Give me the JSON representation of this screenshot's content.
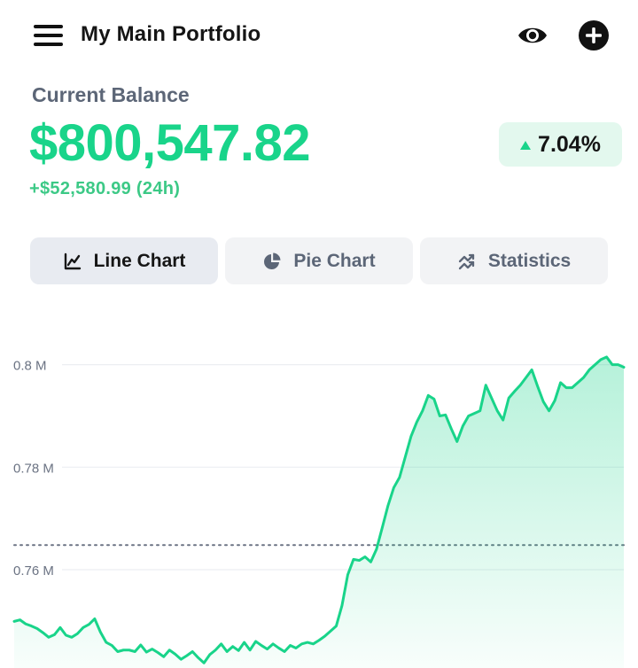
{
  "header": {
    "title": "My Main Portfolio",
    "menu_icon": "hamburger-menu-icon",
    "visibility_icon": "eye-icon",
    "add_icon": "plus-circle-icon"
  },
  "balance": {
    "label": "Current Balance",
    "value": "$800,547.82",
    "change_24h": "+$52,580.99 (24h)",
    "percent_change": "7.04%",
    "trend_icon": "triangle-up-icon"
  },
  "tabs": [
    {
      "label": "Line Chart",
      "icon": "line-chart-icon",
      "active": true
    },
    {
      "label": "Pie Chart",
      "icon": "pie-chart-icon",
      "active": false
    },
    {
      "label": "Statistics",
      "icon": "trending-icon",
      "active": false
    }
  ],
  "colors": {
    "accent": "#19d48a",
    "text_muted": "#5c6677",
    "badge_bg": "#e3f8ee",
    "tab_bg": "#f2f3f5",
    "tab_active_bg": "#e8ebf1"
  },
  "chart_data": {
    "type": "area",
    "y_ticks": [
      "0.8 M",
      "0.78 M",
      "0.76 M"
    ],
    "y_tick_values": [
      0.8,
      0.78,
      0.76
    ],
    "ylim": [
      0.7408,
      0.8072
    ],
    "reference_line": 0.7648,
    "grid": true,
    "series": [
      {
        "values": [
          0.7499,
          0.7502,
          0.7494,
          0.749,
          0.7485,
          0.7477,
          0.7468,
          0.7473,
          0.7487,
          0.7472,
          0.7468,
          0.7475,
          0.7487,
          0.7493,
          0.7504,
          0.7478,
          0.7458,
          0.7452,
          0.744,
          0.7443,
          0.7443,
          0.744,
          0.7453,
          0.7439,
          0.7445,
          0.7438,
          0.743,
          0.7443,
          0.7435,
          0.7425,
          0.7432,
          0.744,
          0.7428,
          0.7418,
          0.7434,
          0.7443,
          0.7455,
          0.744,
          0.745,
          0.7442,
          0.7458,
          0.7443,
          0.746,
          0.7452,
          0.7445,
          0.7455,
          0.7447,
          0.744,
          0.7452,
          0.7447,
          0.7455,
          0.7458,
          0.7455,
          0.7462,
          0.747,
          0.748,
          0.749,
          0.753,
          0.759,
          0.762,
          0.7618,
          0.7625,
          0.7615,
          0.764,
          0.7682,
          0.7725,
          0.776,
          0.778,
          0.782,
          0.786,
          0.7888,
          0.791,
          0.794,
          0.7933,
          0.79,
          0.7902,
          0.7875,
          0.785,
          0.788,
          0.79,
          0.7905,
          0.791,
          0.796,
          0.7935,
          0.791,
          0.7892,
          0.7935,
          0.7948,
          0.796,
          0.7975,
          0.799,
          0.7958,
          0.7928,
          0.791,
          0.793,
          0.7965,
          0.7955,
          0.7955,
          0.7965,
          0.7975,
          0.799,
          0.8,
          0.801,
          0.8015,
          0.8,
          0.8,
          0.7995
        ],
        "stroke": "#19d48a"
      }
    ]
  }
}
